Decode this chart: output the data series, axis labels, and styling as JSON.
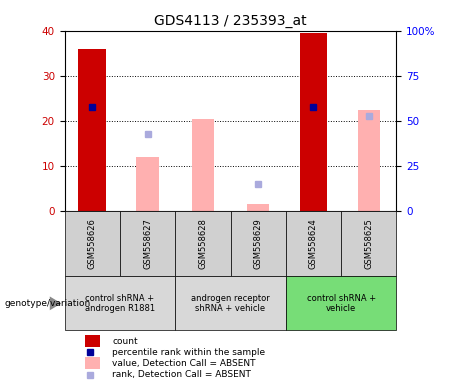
{
  "title": "GDS4113 / 235393_at",
  "samples": [
    "GSM558626",
    "GSM558627",
    "GSM558628",
    "GSM558629",
    "GSM558624",
    "GSM558625"
  ],
  "groups": [
    {
      "label": "control shRNA +\nandrogen R1881",
      "samples": [
        "GSM558626",
        "GSM558627"
      ],
      "color": "#b8f0b8"
    },
    {
      "label": "androgen receptor\nshRNA + vehicle",
      "samples": [
        "GSM558628",
        "GSM558629"
      ],
      "color": "#b8f0b8"
    },
    {
      "label": "control shRNA +\nvehicle",
      "samples": [
        "GSM558624",
        "GSM558625"
      ],
      "color": "#66dd66"
    }
  ],
  "group_colors": [
    "#d8d8d8",
    "#d8d8d8",
    "#77dd77"
  ],
  "red_bars": [
    36,
    null,
    null,
    null,
    39.5,
    null
  ],
  "blue_dots": [
    23,
    null,
    null,
    null,
    23,
    null
  ],
  "pink_bars": [
    null,
    12,
    20.5,
    1.5,
    null,
    22.5
  ],
  "lavender_dots": [
    null,
    17,
    null,
    6,
    null,
    21
  ],
  "ylim_left": [
    0,
    40
  ],
  "ylim_right": [
    0,
    100
  ],
  "yticks_left": [
    0,
    10,
    20,
    30,
    40
  ],
  "yticks_right": [
    0,
    25,
    50,
    75,
    100
  ],
  "ytick_labels_right": [
    "0",
    "25",
    "50",
    "75",
    "100%"
  ],
  "red_color": "#cc0000",
  "pink_color": "#ffb0b0",
  "blue_color": "#000099",
  "lavender_color": "#aaaadd",
  "sample_bg": "#d0d0d0",
  "bar_width": 0.5
}
